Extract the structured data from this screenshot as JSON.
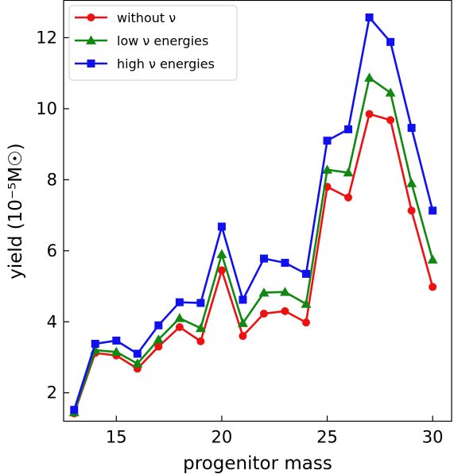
{
  "chart_data": {
    "type": "line",
    "xlabel": "progenitor mass",
    "ylabel": "yield (10⁻⁵M☉)",
    "xlim": [
      12.5,
      30.9
    ],
    "ylim": [
      1.2,
      13.05
    ],
    "xticks": [
      "15",
      "20",
      "25",
      "30"
    ],
    "yticks": [
      "2",
      "4",
      "6",
      "8",
      "10",
      "12"
    ],
    "x": [
      13,
      14,
      15,
      16,
      17,
      18,
      19,
      20,
      21,
      22,
      23,
      24,
      25,
      26,
      27,
      28,
      29,
      30
    ],
    "legend_position": "upper-left",
    "grid": false,
    "series": [
      {
        "name": "without ν",
        "color": "#ee1111",
        "marker": "circle",
        "values": [
          1.42,
          3.12,
          3.05,
          2.68,
          3.3,
          3.85,
          3.45,
          5.45,
          3.6,
          4.23,
          4.3,
          3.98,
          7.8,
          7.5,
          9.85,
          9.68,
          7.13,
          4.98
        ]
      },
      {
        "name": "low ν energies",
        "color": "#118811",
        "marker": "triangle",
        "values": [
          1.45,
          3.2,
          3.15,
          2.82,
          3.5,
          4.1,
          3.82,
          5.9,
          3.96,
          4.82,
          4.84,
          4.5,
          8.28,
          8.2,
          10.87,
          10.45,
          7.9,
          5.75
        ]
      },
      {
        "name": "high ν energies",
        "color": "#1111ee",
        "marker": "square",
        "values": [
          1.52,
          3.38,
          3.47,
          3.1,
          3.9,
          4.55,
          4.53,
          6.68,
          4.62,
          5.78,
          5.66,
          5.35,
          9.1,
          9.42,
          12.57,
          11.88,
          9.46,
          7.13
        ]
      }
    ]
  }
}
